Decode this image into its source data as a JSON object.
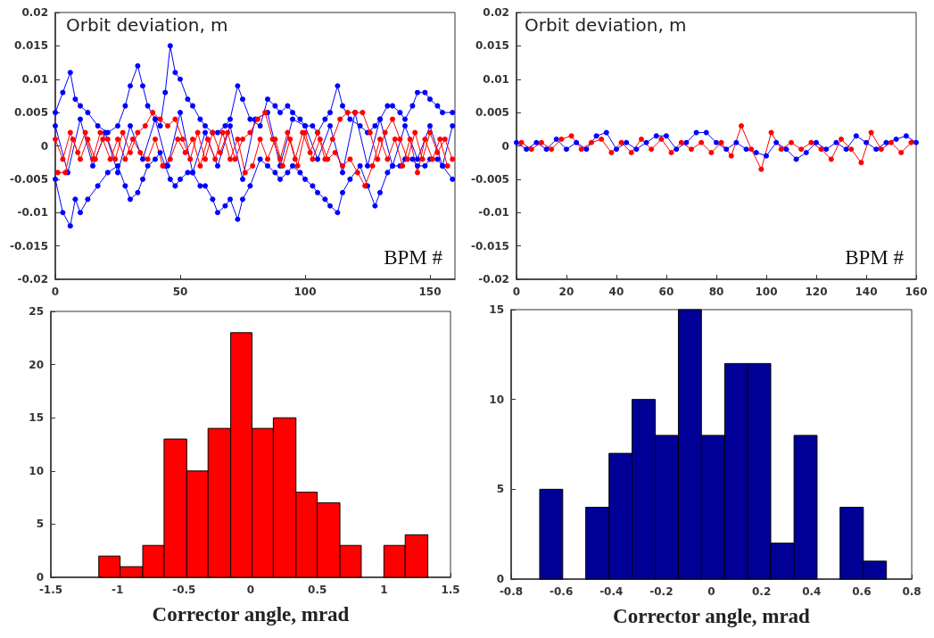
{
  "chart_data": [
    {
      "type": "line",
      "ylabel": "Orbit deviation, m",
      "xlabel": "BPM #",
      "xlim": [
        0,
        160
      ],
      "xticks": [
        0,
        50,
        100,
        150
      ],
      "ylim": [
        -0.02,
        0.02
      ],
      "yticks": [
        -0.02,
        -0.015,
        -0.01,
        -0.005,
        0,
        0.005,
        0.01,
        0.015,
        0.02
      ],
      "marker": "circle",
      "line_style": "solid",
      "series": [
        {
          "color": "#0000ff",
          "x": [
            0,
            3,
            6,
            8,
            10,
            13,
            17,
            21,
            25,
            28,
            30,
            33,
            35,
            37,
            40,
            42,
            44,
            46,
            48,
            50,
            53,
            55,
            58,
            60,
            63,
            65,
            68,
            70,
            73,
            75,
            78,
            82,
            85,
            88,
            90,
            93,
            95,
            98,
            100,
            103,
            105,
            108,
            110,
            113,
            115,
            118,
            122,
            125,
            128,
            130,
            133,
            135,
            138,
            140,
            143,
            145,
            148,
            150,
            153,
            155,
            159
          ],
          "values": [
            0.005,
            0.008,
            0.011,
            0.007,
            0.006,
            0.005,
            0.003,
            0.002,
            0.003,
            0.006,
            0.009,
            0.012,
            0.009,
            0.006,
            0.004,
            0.003,
            0.008,
            0.015,
            0.011,
            0.01,
            0.007,
            0.006,
            0.004,
            0.003,
            0.002,
            0.002,
            0.003,
            0.004,
            0.009,
            0.007,
            0.004,
            0.003,
            0.007,
            0.006,
            0.005,
            0.006,
            0.005,
            0.004,
            0.003,
            0.003,
            0.002,
            0.004,
            0.005,
            0.009,
            0.006,
            0.004,
            0.003,
            0.002,
            0.003,
            0.004,
            0.006,
            0.006,
            0.005,
            0.004,
            0.006,
            0.008,
            0.008,
            0.007,
            0.006,
            0.005,
            0.005
          ]
        },
        {
          "color": "#0000ff",
          "x": [
            0,
            3,
            6,
            8,
            10,
            13,
            17,
            21,
            25,
            28,
            30,
            33,
            35,
            37,
            40,
            42,
            44,
            46,
            48,
            50,
            53,
            55,
            58,
            60,
            63,
            65,
            68,
            70,
            73,
            75,
            78,
            82,
            85,
            88,
            90,
            93,
            95,
            98,
            100,
            103,
            105,
            108,
            110,
            113,
            115,
            118,
            122,
            125,
            128,
            130,
            133,
            135,
            138,
            140,
            143,
            145,
            148,
            150,
            153,
            155,
            159
          ],
          "values": [
            -0.005,
            -0.01,
            -0.012,
            -0.008,
            -0.01,
            -0.008,
            -0.006,
            -0.004,
            -0.003,
            -0.006,
            -0.008,
            -0.007,
            -0.005,
            -0.003,
            -0.002,
            -0.001,
            -0.003,
            -0.005,
            -0.006,
            -0.005,
            -0.004,
            -0.004,
            -0.006,
            -0.006,
            -0.008,
            -0.01,
            -0.009,
            -0.008,
            -0.011,
            -0.008,
            -0.006,
            -0.002,
            -0.003,
            -0.004,
            -0.005,
            -0.004,
            -0.003,
            -0.004,
            -0.005,
            -0.006,
            -0.007,
            -0.008,
            -0.009,
            -0.01,
            -0.007,
            -0.005,
            -0.003,
            -0.006,
            -0.009,
            -0.007,
            -0.004,
            -0.003,
            -0.003,
            -0.002,
            -0.002,
            -0.003,
            -0.003,
            -0.002,
            -0.002,
            -0.003,
            -0.005
          ]
        },
        {
          "color": "#0000ff",
          "x": [
            0,
            5,
            10,
            15,
            20,
            25,
            30,
            35,
            40,
            45,
            50,
            55,
            60,
            65,
            70,
            75,
            80,
            85,
            90,
            95,
            100,
            105,
            110,
            115,
            120,
            125,
            130,
            135,
            140,
            145,
            150,
            155,
            159
          ],
          "values": [
            0.003,
            -0.004,
            0.004,
            -0.003,
            0.002,
            -0.004,
            0.003,
            -0.002,
            0.004,
            -0.003,
            0.005,
            -0.004,
            0.002,
            -0.003,
            0.003,
            -0.005,
            0.004,
            0.005,
            -0.003,
            0.004,
            0.003,
            -0.002,
            0.003,
            -0.004,
            0.005,
            -0.003,
            0.004,
            -0.003,
            0.003,
            -0.002,
            0.003,
            -0.003,
            0.003
          ]
        },
        {
          "color": "#ff0000",
          "x": [
            0,
            3,
            6,
            9,
            12,
            15,
            18,
            21,
            24,
            27,
            30,
            33,
            36,
            39,
            42,
            45,
            48,
            51,
            54,
            57,
            60,
            63,
            66,
            69,
            72,
            75,
            78,
            81,
            84,
            87,
            90,
            93,
            96,
            99,
            102,
            105,
            108,
            111,
            114,
            117,
            120,
            123,
            126,
            129,
            132,
            135,
            138,
            141,
            144,
            147,
            150,
            153,
            156,
            159
          ],
          "values": [
            0.001,
            -0.002,
            0.002,
            -0.001,
            0.002,
            -0.002,
            0.002,
            0.001,
            -0.002,
            0.002,
            -0.001,
            0.002,
            0.003,
            0.005,
            0.004,
            0.003,
            0.004,
            0.001,
            -0.002,
            0.002,
            -0.002,
            0.002,
            -0.001,
            0.002,
            -0.002,
            0.001,
            0.002,
            0.004,
            0.005,
            0.001,
            -0.002,
            0.002,
            -0.002,
            0.002,
            -0.001,
            0.002,
            -0.002,
            0.001,
            0.004,
            0.005,
            0.005,
            0.005,
            0.002,
            -0.002,
            0.002,
            0.004,
            0.001,
            -0.002,
            0.002,
            -0.002,
            0.002,
            -0.001,
            0.001,
            -0.002
          ]
        },
        {
          "color": "#ff0000",
          "x": [
            1,
            4,
            7,
            10,
            13,
            16,
            19,
            22,
            25,
            28,
            31,
            34,
            37,
            40,
            43,
            46,
            49,
            52,
            55,
            58,
            61,
            64,
            67,
            70,
            73,
            76,
            79,
            82,
            85,
            88,
            91,
            94,
            97,
            100,
            103,
            106,
            109,
            112,
            115,
            118,
            121,
            124,
            127,
            130,
            133,
            136,
            139,
            142,
            145,
            148,
            151,
            154,
            157
          ],
          "values": [
            -0.004,
            -0.004,
            0.001,
            -0.002,
            0.001,
            -0.002,
            0.001,
            -0.002,
            0.001,
            -0.002,
            0.001,
            -0.001,
            -0.002,
            0.001,
            -0.003,
            -0.002,
            0.001,
            -0.001,
            0.001,
            -0.003,
            0.001,
            -0.002,
            0.002,
            -0.002,
            0.001,
            -0.004,
            -0.003,
            0.001,
            -0.002,
            0.001,
            -0.003,
            0.001,
            -0.003,
            0.002,
            -0.002,
            0.001,
            -0.002,
            -0.001,
            -0.003,
            -0.002,
            -0.004,
            -0.006,
            -0.003,
            0.001,
            -0.002,
            0.001,
            -0.003,
            0.001,
            -0.004,
            0.001,
            -0.002,
            0.001,
            -0.003
          ]
        }
      ]
    },
    {
      "type": "line",
      "ylabel": "Orbit deviation, m",
      "xlabel": "BPM #",
      "xlim": [
        0,
        160
      ],
      "xticks": [
        0,
        20,
        40,
        60,
        80,
        100,
        120,
        140,
        160
      ],
      "ylim": [
        -0.02,
        0.02
      ],
      "yticks": [
        -0.02,
        -0.015,
        -0.01,
        -0.005,
        0,
        0.005,
        0.01,
        0.015,
        0.02
      ],
      "marker": "circle",
      "line_style": "solid",
      "series": [
        {
          "color": "#0000ff",
          "x": [
            0,
            4,
            8,
            12,
            16,
            20,
            24,
            28,
            32,
            36,
            40,
            44,
            48,
            52,
            56,
            60,
            64,
            68,
            72,
            76,
            80,
            84,
            88,
            92,
            96,
            100,
            104,
            108,
            112,
            116,
            120,
            124,
            128,
            132,
            136,
            140,
            144,
            148,
            152,
            156,
            160
          ],
          "values": [
            0.0005,
            -0.0005,
            0.0005,
            -0.0005,
            0.001,
            -0.0005,
            0.0005,
            -0.0005,
            0.0015,
            0.002,
            -0.0005,
            0.0005,
            -0.0005,
            0.0005,
            0.0015,
            0.0015,
            -0.0005,
            0.0005,
            0.002,
            0.002,
            0.0005,
            -0.0005,
            0.0005,
            -0.0005,
            -0.001,
            -0.0015,
            0.0005,
            -0.0005,
            -0.002,
            -0.001,
            0.0005,
            -0.0005,
            0.0005,
            -0.0005,
            0.0015,
            0.0005,
            -0.0005,
            0.0005,
            0.001,
            0.0015,
            0.0005
          ]
        },
        {
          "color": "#ff0000",
          "x": [
            2,
            6,
            10,
            14,
            18,
            22,
            26,
            30,
            34,
            38,
            42,
            46,
            50,
            54,
            58,
            62,
            66,
            70,
            74,
            78,
            82,
            86,
            90,
            94,
            98,
            102,
            106,
            110,
            114,
            118,
            122,
            126,
            130,
            134,
            138,
            142,
            146,
            150,
            154,
            158
          ],
          "values": [
            0.0005,
            -0.0005,
            0.0005,
            -0.0005,
            0.001,
            0.0015,
            -0.0005,
            0.0005,
            0.001,
            -0.001,
            0.0005,
            -0.001,
            0.001,
            -0.0005,
            0.001,
            -0.001,
            0.0005,
            -0.0005,
            0.0005,
            -0.001,
            0.0005,
            -0.0015,
            0.003,
            -0.0005,
            -0.0035,
            0.002,
            -0.0005,
            0.0005,
            -0.0005,
            0.0005,
            -0.0005,
            -0.002,
            0.001,
            -0.0005,
            -0.0025,
            0.002,
            -0.0005,
            0.0005,
            -0.001,
            0.0005
          ]
        }
      ]
    },
    {
      "type": "histogram",
      "xlabel": "Corrector angle, mrad",
      "color": "#ff0000",
      "xlim": [
        -1.5,
        1.5
      ],
      "xticks": [
        -1.5,
        -1,
        -0.5,
        0,
        0.5,
        1,
        1.5
      ],
      "ylim": [
        0,
        25
      ],
      "yticks": [
        0,
        5,
        10,
        15,
        20,
        25
      ],
      "bins": [
        -1.14,
        -0.98,
        -0.81,
        -0.65,
        -0.48,
        -0.32,
        -0.15,
        0.01,
        0.17,
        0.34,
        0.5,
        0.67,
        0.83,
        1.0,
        1.16,
        1.33
      ],
      "values": [
        2,
        1,
        3,
        13,
        10,
        14,
        23,
        14,
        15,
        8,
        7,
        3,
        0,
        3,
        4
      ]
    },
    {
      "type": "histogram",
      "xlabel": "Corrector angle, mrad",
      "color": "#000096",
      "xlim": [
        -0.8,
        0.8
      ],
      "xticks": [
        -0.8,
        -0.6,
        -0.4,
        -0.2,
        0,
        0.2,
        0.4,
        0.6,
        0.8
      ],
      "ylim": [
        0,
        15
      ],
      "yticks": [
        0,
        5,
        10,
        15
      ],
      "bins": [
        -0.686,
        -0.594,
        -0.502,
        -0.409,
        -0.317,
        -0.224,
        -0.132,
        -0.04,
        0.053,
        0.145,
        0.237,
        0.33,
        0.422,
        0.514,
        0.607,
        0.699
      ],
      "values": [
        5,
        0,
        4,
        7,
        10,
        8,
        15,
        8,
        12,
        12,
        2,
        8,
        0,
        4,
        1
      ]
    }
  ]
}
